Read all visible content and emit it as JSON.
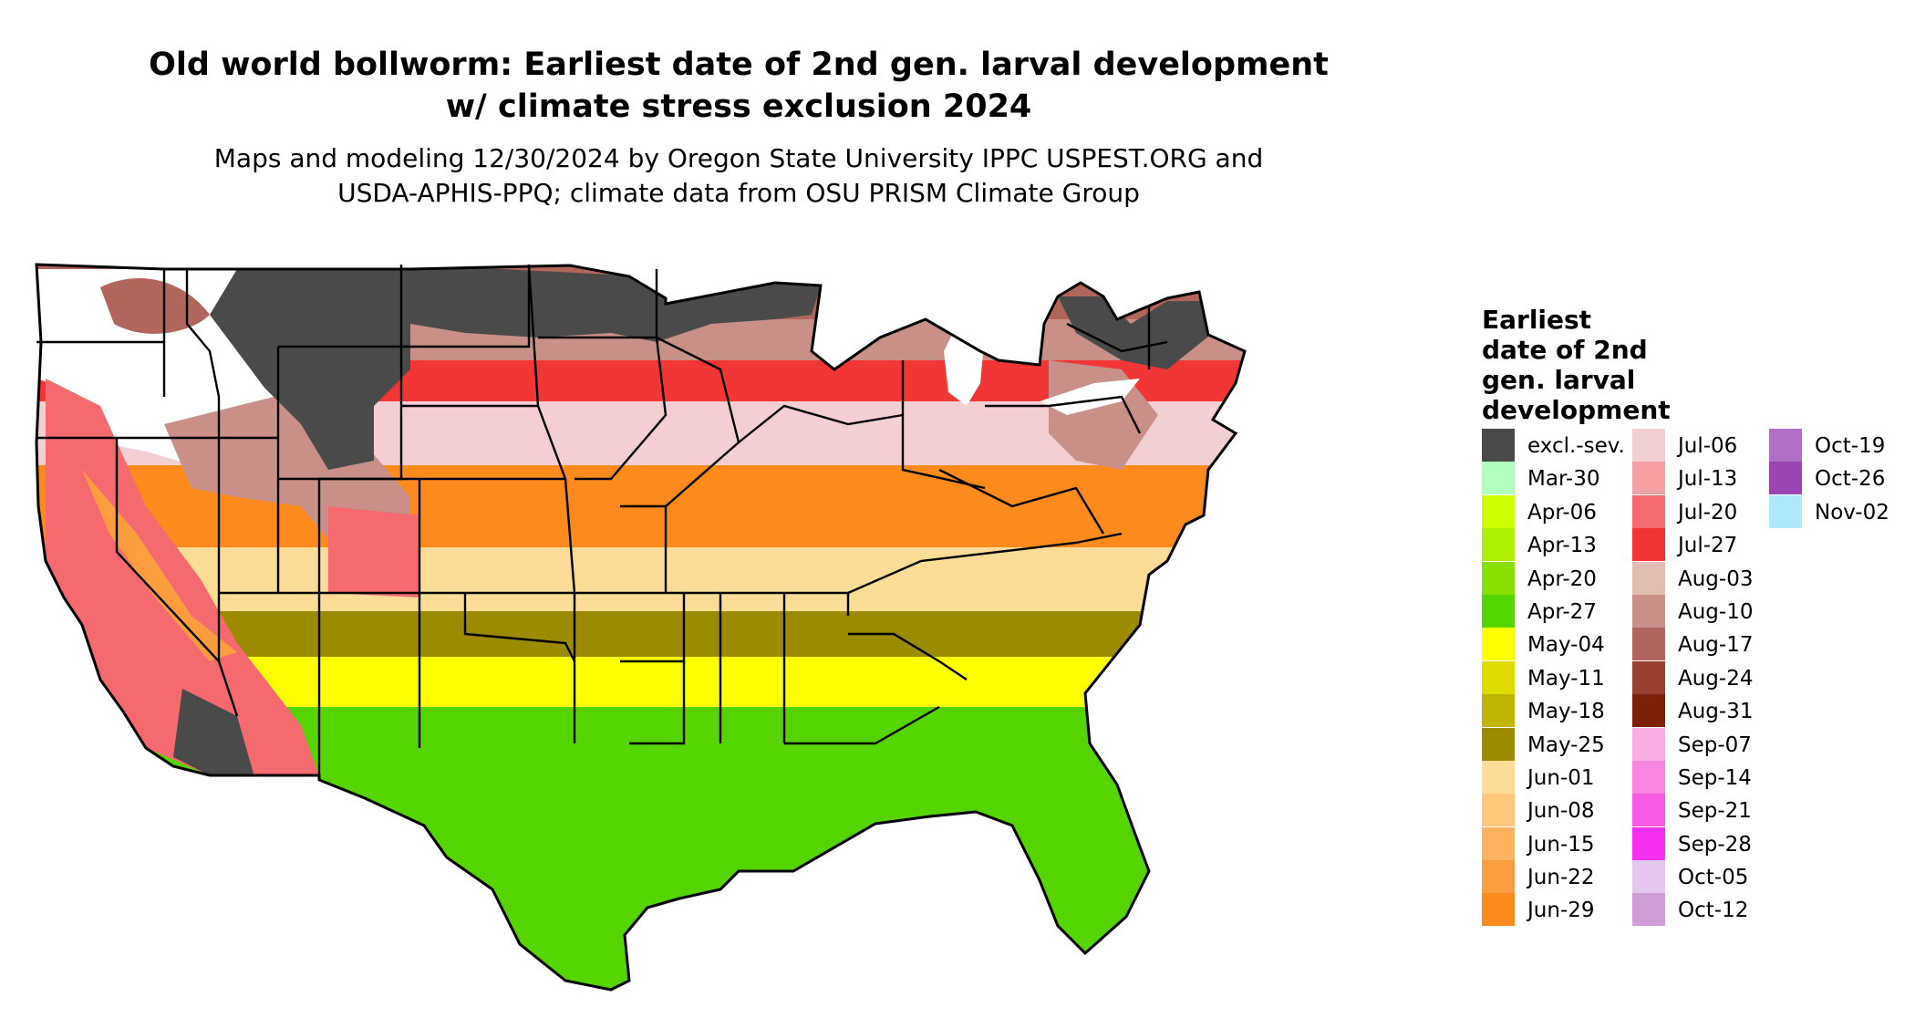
{
  "title_line1": "Old world bollworm: Earliest date of 2nd gen. larval development",
  "title_line2": "w/ climate stress exclusion 2024",
  "subtitle_line1": "Maps and modeling 12/30/2024 by Oregon State University IPPC USPEST.ORG and",
  "subtitle_line2": "USDA-APHIS-PPQ; climate data from OSU PRISM Climate Group",
  "legend": {
    "title_lines": [
      "Earliest",
      "date of 2nd",
      "gen. larval",
      "development"
    ],
    "columns": [
      [
        {
          "label": "excl.-sev.",
          "color": "#4a4a4a"
        },
        {
          "label": "Mar-30",
          "color": "#b3ffbf"
        },
        {
          "label": "Apr-06",
          "color": "#ccff00"
        },
        {
          "label": "Apr-13",
          "color": "#aef000"
        },
        {
          "label": "Apr-20",
          "color": "#88e000"
        },
        {
          "label": "Apr-27",
          "color": "#55d400"
        },
        {
          "label": "May-04",
          "color": "#ffff00"
        },
        {
          "label": "May-11",
          "color": "#e0dc00"
        },
        {
          "label": "May-18",
          "color": "#bfb400"
        },
        {
          "label": "May-25",
          "color": "#9c8a00"
        },
        {
          "label": "Jun-01",
          "color": "#fddc98"
        },
        {
          "label": "Jun-08",
          "color": "#fdc77c"
        },
        {
          "label": "Jun-15",
          "color": "#fdb260"
        },
        {
          "label": "Jun-22",
          "color": "#fd9d40"
        },
        {
          "label": "Jun-29",
          "color": "#fd8a1c"
        }
      ],
      [
        {
          "label": "Jul-06",
          "color": "#f3cfd4"
        },
        {
          "label": "Jul-13",
          "color": "#f5a0a4"
        },
        {
          "label": "Jul-20",
          "color": "#f56a6e"
        },
        {
          "label": "Jul-27",
          "color": "#f23535"
        },
        {
          "label": "Aug-03",
          "color": "#e3bcb4"
        },
        {
          "label": "Aug-10",
          "color": "#c9908a"
        },
        {
          "label": "Aug-17",
          "color": "#b0665b"
        },
        {
          "label": "Aug-24",
          "color": "#9a4030"
        },
        {
          "label": "Aug-31",
          "color": "#7e1f0a"
        },
        {
          "label": "Sep-07",
          "color": "#f8aee0"
        },
        {
          "label": "Sep-14",
          "color": "#f884df"
        },
        {
          "label": "Sep-21",
          "color": "#f85ce4"
        },
        {
          "label": "Sep-28",
          "color": "#f52ef0"
        },
        {
          "label": "Oct-05",
          "color": "#e5c7ee"
        },
        {
          "label": "Oct-12",
          "color": "#d19ad8"
        }
      ],
      [
        {
          "label": "Oct-19",
          "color": "#b26fc6"
        },
        {
          "label": "Oct-26",
          "color": "#9a45b2"
        },
        {
          "label": "Nov-02",
          "color": "#aee8fb"
        }
      ]
    ]
  },
  "map": {
    "regions": [
      {
        "name": "excluded-north",
        "color": "#4a4a4a"
      },
      {
        "name": "aug-late-band",
        "color": "#b0665b"
      },
      {
        "name": "aug-band",
        "color": "#c9908a"
      },
      {
        "name": "jul-red-band",
        "color": "#f23535"
      },
      {
        "name": "jul-pink-band",
        "color": "#f3cfd4"
      },
      {
        "name": "jun-orange-band",
        "color": "#fd8a1c"
      },
      {
        "name": "jun-light-band",
        "color": "#fddc98"
      },
      {
        "name": "may-olive-band",
        "color": "#9c8a00"
      },
      {
        "name": "may-yellow-band",
        "color": "#ffff00"
      },
      {
        "name": "apr-green-band",
        "color": "#55d400"
      },
      {
        "name": "unsuitable-white",
        "color": "#ffffff"
      }
    ]
  }
}
